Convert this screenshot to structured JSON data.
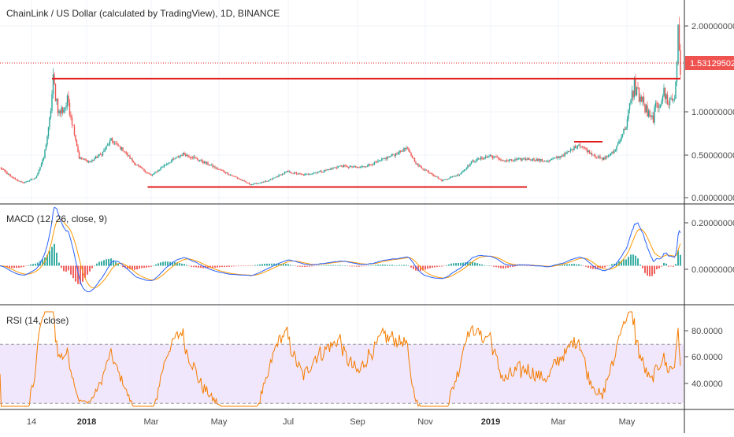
{
  "colors": {
    "up": "#26a69a",
    "down": "#ef5350",
    "hline": "#e31b1b",
    "macd_line": "#2962ff",
    "signal_line": "#ff9800",
    "hist_pos": "#26a69a",
    "hist_neg": "#ef5350",
    "rsi_line": "#f57c00",
    "rsi_band": "#e9ddfb",
    "axis_text": "#4a4a4a",
    "price_badge": "#ef5350"
  },
  "price_panel": {
    "title": "ChainLink / US Dollar (calculated by TradingView), 1D, BINANCE",
    "y_ticks": [
      "2.00000000",
      "1.00000000",
      "0.50000000",
      "0.00000000"
    ],
    "last_price_label": "1.53129502"
  },
  "macd_panel": {
    "title": "MACD (12, 26, close, 9)",
    "y_ticks": [
      "0.20000000",
      "0.00000000"
    ]
  },
  "rsi_panel": {
    "title": "RSI (14, close)",
    "y_ticks": [
      "80.0000",
      "60.0000",
      "40.0000"
    ]
  },
  "x_axis": {
    "ticks": [
      "14",
      "2018",
      "Mar",
      "May",
      "Jul",
      "Sep",
      "Nov",
      "2019",
      "Mar",
      "May"
    ]
  },
  "chart_data": [
    {
      "type": "candlestick",
      "title": "ChainLink / US Dollar (calculated by TradingView), 1D, BINANCE",
      "x_range": [
        "2017-12-01",
        "2019-06-30"
      ],
      "ylim": [
        -0.03,
        2.2
      ],
      "last_price": 1.53129502,
      "close_anchors": [
        [
          "2017-12-01",
          0.38
        ],
        [
          "2017-12-10",
          0.27
        ],
        [
          "2017-12-20",
          0.19
        ],
        [
          "2017-12-31",
          0.25
        ],
        [
          "2018-01-07",
          0.5
        ],
        [
          "2018-01-12",
          0.95
        ],
        [
          "2018-01-15",
          1.45
        ],
        [
          "2018-01-20",
          1.05
        ],
        [
          "2018-01-28",
          1.2
        ],
        [
          "2018-02-06",
          0.5
        ],
        [
          "2018-02-15",
          0.45
        ],
        [
          "2018-02-25",
          0.55
        ],
        [
          "2018-03-05",
          0.72
        ],
        [
          "2018-03-15",
          0.6
        ],
        [
          "2018-03-25",
          0.43
        ],
        [
          "2018-04-08",
          0.28
        ],
        [
          "2018-04-20",
          0.42
        ],
        [
          "2018-05-05",
          0.55
        ],
        [
          "2018-05-15",
          0.5
        ],
        [
          "2018-06-01",
          0.38
        ],
        [
          "2018-06-20",
          0.25
        ],
        [
          "2018-07-01",
          0.17
        ],
        [
          "2018-07-15",
          0.21
        ],
        [
          "2018-08-01",
          0.33
        ],
        [
          "2018-08-15",
          0.29
        ],
        [
          "2018-09-01",
          0.34
        ],
        [
          "2018-09-15",
          0.4
        ],
        [
          "2018-10-01",
          0.38
        ],
        [
          "2018-10-15",
          0.44
        ],
        [
          "2018-11-01",
          0.55
        ],
        [
          "2018-11-10",
          0.62
        ],
        [
          "2018-11-20",
          0.4
        ],
        [
          "2018-12-01",
          0.31
        ],
        [
          "2018-12-10",
          0.22
        ],
        [
          "2018-12-25",
          0.3
        ],
        [
          "2019-01-05",
          0.46
        ],
        [
          "2019-01-20",
          0.53
        ],
        [
          "2019-02-01",
          0.46
        ],
        [
          "2019-02-20",
          0.49
        ],
        [
          "2019-03-10",
          0.46
        ],
        [
          "2019-03-25",
          0.55
        ],
        [
          "2019-04-05",
          0.67
        ],
        [
          "2019-04-15",
          0.56
        ],
        [
          "2019-04-25",
          0.48
        ],
        [
          "2019-05-05",
          0.58
        ],
        [
          "2019-05-15",
          0.9
        ],
        [
          "2019-05-22",
          1.4
        ],
        [
          "2019-05-30",
          1.15
        ],
        [
          "2019-06-05",
          0.95
        ],
        [
          "2019-06-15",
          1.3
        ],
        [
          "2019-06-20",
          1.2
        ],
        [
          "2019-06-25",
          1.25
        ],
        [
          "2019-06-28",
          2.0
        ],
        [
          "2019-06-30",
          1.53
        ]
      ],
      "horizontal_lines": [
        {
          "start": "2018-01-14",
          "end": "2019-06-30",
          "value": 1.48
        },
        {
          "start": "2018-04-05",
          "end": "2019-02-20",
          "value": 0.14
        },
        {
          "start": "2019-04-01",
          "end": "2019-04-25",
          "value": 0.7
        }
      ]
    },
    {
      "type": "line",
      "title": "MACD (12, 26, close, 9)",
      "series": [
        {
          "values_from": "close_anchors"
        }
      ],
      "ylim": [
        -0.17,
        0.26
      ]
    },
    {
      "type": "line",
      "title": "RSI (14, close)",
      "ylim": [
        28,
        92
      ],
      "band": [
        30,
        70
      ]
    }
  ]
}
